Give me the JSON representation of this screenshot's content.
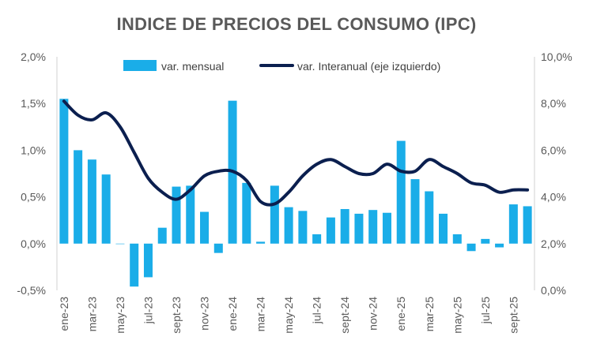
{
  "chart_data": {
    "type": "bar+line",
    "title": "INDICE DE PRECIOS DEL CONSUMO (IPC)",
    "colors": {
      "bar": "#1AADE8",
      "line": "#0B1F4F",
      "title": "#595959",
      "axis_text": "#595959"
    },
    "categories": [
      "ene-23",
      "feb-23",
      "mar-23",
      "abr-23",
      "may-23",
      "jun-23",
      "jul-23",
      "ago-23",
      "sept-23",
      "oct-23",
      "nov-23",
      "dic-23",
      "ene-24",
      "feb-24",
      "mar-24",
      "abr-24",
      "may-24",
      "jun-24",
      "jul-24",
      "ago-24",
      "sept-24",
      "oct-24",
      "nov-24",
      "dic-24",
      "ene-25",
      "feb-25",
      "mar-25",
      "abr-25",
      "may-25",
      "jun-25",
      "jul-25",
      "ago-25",
      "sept-25",
      "oct-25"
    ],
    "x_tick_labels": [
      "ene-23",
      "mar-23",
      "may-23",
      "jul-23",
      "sept-23",
      "nov-23",
      "ene-24",
      "mar-24",
      "may-24",
      "jul-24",
      "sept-24",
      "nov-24",
      "ene-25",
      "mar-25",
      "may-25",
      "jul-25",
      "sept-25"
    ],
    "series": [
      {
        "name": "var. mensual",
        "kind": "bar",
        "axis": "left",
        "values": [
          1.55,
          1.0,
          0.9,
          0.74,
          0.0,
          -0.46,
          -0.36,
          0.17,
          0.61,
          0.62,
          0.34,
          -0.1,
          1.53,
          0.65,
          0.02,
          0.62,
          0.39,
          0.35,
          0.1,
          0.28,
          0.37,
          0.32,
          0.36,
          0.33,
          1.1,
          0.69,
          0.56,
          0.32,
          0.1,
          -0.08,
          0.05,
          -0.04,
          0.42,
          0.4
        ]
      },
      {
        "name": "var. Interanual (eje izquierdo)",
        "kind": "line",
        "axis": "right",
        "values": [
          8.1,
          7.5,
          7.3,
          7.6,
          7.0,
          5.9,
          4.8,
          4.2,
          3.9,
          4.3,
          4.9,
          5.1,
          5.1,
          4.7,
          3.8,
          3.7,
          4.2,
          4.9,
          5.4,
          5.6,
          5.3,
          5.0,
          5.0,
          5.4,
          5.1,
          5.1,
          5.6,
          5.3,
          5.0,
          4.6,
          4.5,
          4.2,
          4.3,
          4.3
        ]
      }
    ],
    "y_left": {
      "min": -0.5,
      "max": 2.0,
      "ticks": [
        "-0,5%",
        "0,0%",
        "0,5%",
        "1,0%",
        "1,5%",
        "2,0%"
      ]
    },
    "y_right": {
      "min": 0,
      "max": 10,
      "ticks": [
        "0,0%",
        "2,0%",
        "4,0%",
        "6,0%",
        "8,0%",
        "10,0%"
      ]
    },
    "legend": {
      "position": "top",
      "bar_label": "var. mensual",
      "line_label": "var. Interanual (eje izquierdo)"
    },
    "grid": false
  }
}
